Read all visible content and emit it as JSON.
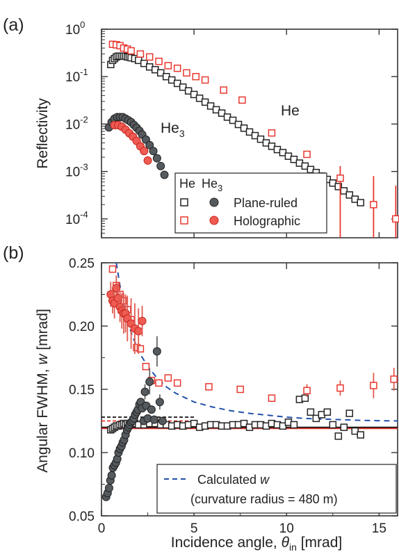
{
  "chart_data": [
    {
      "panel": "(a)",
      "type": "scatter",
      "ylabel": "Reflectivity",
      "yscale": "log",
      "ylim": [
        4e-05,
        1
      ],
      "xlim": [
        0,
        16
      ],
      "yticks": [
        {
          "v": 1,
          "m": "10",
          "e": "0"
        },
        {
          "v": 0.1,
          "m": "10",
          "e": "-1"
        },
        {
          "v": 0.01,
          "m": "10",
          "e": "-2"
        },
        {
          "v": 0.001,
          "m": "10",
          "e": "-3"
        },
        {
          "v": 0.0001,
          "m": "10",
          "e": "-4"
        }
      ],
      "annotations": [
        {
          "text": "He",
          "sub": "",
          "x": 10.5,
          "y": 0.012
        },
        {
          "text": "He",
          "sub": "3",
          "x": 5.1,
          "y": 0.0042
        }
      ],
      "legend": {
        "position": "bottom-right",
        "header_he": "He",
        "header_he3": "He",
        "header_he3_sub": "3",
        "entries": [
          "Plane-ruled",
          "Holographic"
        ]
      },
      "series": [
        {
          "name": "Plane-ruled",
          "marker": "open-square",
          "color": "#222222",
          "x": [
            0.5,
            0.6,
            0.7,
            0.8,
            0.9,
            1.0,
            1.1,
            1.2,
            1.3,
            1.4,
            1.5,
            1.6,
            1.8,
            2.0,
            2.3,
            2.6,
            2.9,
            3.2,
            3.5,
            3.8,
            4.1,
            4.4,
            4.7,
            5.0,
            5.3,
            5.6,
            5.9,
            6.2,
            6.5,
            6.8,
            7.1,
            7.4,
            7.7,
            8.0,
            8.3,
            8.6,
            8.9,
            9.2,
            9.5,
            9.8,
            10.1,
            10.4,
            10.7,
            11.0,
            11.3,
            11.6,
            11.9,
            12.2,
            12.5,
            12.8,
            13.1,
            13.4,
            13.7,
            14.0
          ],
          "y": [
            0.18,
            0.22,
            0.24,
            0.26,
            0.27,
            0.27,
            0.27,
            0.27,
            0.27,
            0.26,
            0.26,
            0.25,
            0.24,
            0.22,
            0.19,
            0.16,
            0.14,
            0.12,
            0.1,
            0.085,
            0.072,
            0.06,
            0.05,
            0.042,
            0.035,
            0.029,
            0.024,
            0.02,
            0.017,
            0.014,
            0.012,
            0.0098,
            0.0082,
            0.0068,
            0.0057,
            0.0048,
            0.004,
            0.0034,
            0.0029,
            0.0025,
            0.0021,
            0.0018,
            0.0015,
            0.0013,
            0.0011,
            0.00095,
            0.0008,
            0.00068,
            0.00057,
            0.00048,
            0.00039,
            0.00032,
            0.00026,
            0.00022
          ]
        },
        {
          "name": "Holographic",
          "marker": "open-square",
          "color": "#e8372f",
          "x": [
            0.6,
            0.8,
            1.0,
            1.2,
            1.4,
            1.6,
            2.1,
            2.6,
            3.1,
            3.6,
            4.1,
            4.6,
            5.1,
            5.6,
            6.6,
            7.6,
            9.2,
            11.1,
            12.9,
            14.7,
            15.9
          ],
          "y": [
            0.48,
            0.47,
            0.45,
            0.4,
            0.38,
            0.35,
            0.3,
            0.26,
            0.21,
            0.17,
            0.15,
            0.12,
            0.1,
            0.085,
            0.052,
            0.032,
            0.0065,
            0.0023,
            0.00072,
            0.0002,
            0.0001
          ],
          "yerr_high": [
            null,
            null,
            null,
            null,
            null,
            null,
            null,
            null,
            null,
            null,
            null,
            null,
            null,
            null,
            null,
            null,
            null,
            null,
            0.0013,
            0.0008,
            0.0005
          ],
          "yerr_low": [
            null,
            null,
            null,
            null,
            null,
            null,
            null,
            null,
            null,
            null,
            null,
            null,
            null,
            null,
            null,
            null,
            null,
            null,
            4e-05,
            4e-05,
            4e-05
          ]
        },
        {
          "name": "Plane-ruled He3",
          "marker": "filled-circle",
          "color": "#555a5e",
          "x": [
            0.4,
            0.55,
            0.7,
            0.85,
            1.0,
            1.15,
            1.3,
            1.45,
            1.6,
            1.75,
            1.9,
            2.05,
            2.2,
            2.4,
            2.6,
            2.8,
            3.0,
            3.2,
            3.4
          ],
          "y": [
            0.0085,
            0.011,
            0.013,
            0.014,
            0.014,
            0.014,
            0.013,
            0.012,
            0.011,
            0.0096,
            0.0084,
            0.0072,
            0.006,
            0.0047,
            0.0036,
            0.0027,
            0.0019,
            0.0013,
            0.00085
          ]
        },
        {
          "name": "Holographic He3",
          "marker": "filled-circle",
          "color": "#e8372f",
          "x": [
            0.7,
            0.9,
            1.1,
            1.3,
            1.5,
            1.7,
            1.9,
            2.1,
            2.3,
            2.5
          ],
          "y": [
            0.0095,
            0.0095,
            0.0088,
            0.0076,
            0.0064,
            0.0054,
            0.0044,
            0.0034,
            0.0027,
            0.0017
          ]
        }
      ]
    },
    {
      "panel": "(b)",
      "type": "scatter",
      "xlabel_main": "Incidence angle, ",
      "xlabel_sym": "θ",
      "xlabel_sub": "in",
      "xlabel_unit": " [mrad]",
      "ylabel_main": "Angular FWHM, ",
      "ylabel_sym": "w",
      "ylabel_unit": " [mrad]",
      "xlim": [
        0,
        16
      ],
      "ylim": [
        0.05,
        0.25
      ],
      "xticks": [
        0,
        5,
        10,
        15
      ],
      "yticks": [
        0.05,
        0.1,
        0.15,
        0.2,
        0.25
      ],
      "legend": {
        "position": "bottom-right",
        "line1_main": "Calculated ",
        "line1_sym": "w",
        "line2": "(curvature radius = 480 m)"
      },
      "lines": [
        {
          "name": "Calculated w",
          "style": "dashed",
          "color": "#1f4fa8",
          "x": [
            0.8,
            1.0,
            1.3,
            1.6,
            2.0,
            2.5,
            3.0,
            3.5,
            4.0,
            5.0,
            6.0,
            7.0,
            8.0,
            9.0,
            10.0,
            11.0,
            12.0,
            13.0,
            14.0,
            15.0,
            16.0
          ],
          "y": [
            0.252,
            0.232,
            0.21,
            0.195,
            0.18,
            0.168,
            0.159,
            0.152,
            0.147,
            0.14,
            0.136,
            0.133,
            0.131,
            0.1295,
            0.128,
            0.127,
            0.1265,
            0.126,
            0.1255,
            0.1252,
            0.125
          ]
        },
        {
          "name": "solid black",
          "style": "solid",
          "color": "#111111",
          "x": [
            0,
            16
          ],
          "y": [
            0.12,
            0.12
          ]
        },
        {
          "name": "solid red",
          "style": "solid",
          "color": "#e8372f",
          "x": [
            0,
            16
          ],
          "y": [
            0.119,
            0.119
          ]
        },
        {
          "name": "dashed black",
          "style": "dashed",
          "color": "#111111",
          "x": [
            0,
            5
          ],
          "y": [
            0.128,
            0.128
          ]
        },
        {
          "name": "dashed red",
          "style": "dashed",
          "color": "#e8372f",
          "x": [
            0,
            5
          ],
          "y": [
            0.125,
            0.125
          ]
        }
      ],
      "series": [
        {
          "name": "Plane-ruled",
          "marker": "open-square",
          "color": "#222222",
          "x": [
            0.5,
            0.6,
            0.7,
            0.8,
            0.9,
            1.0,
            1.1,
            1.2,
            1.3,
            1.4,
            1.5,
            1.6,
            1.8,
            2.0,
            2.3,
            2.6,
            2.9,
            3.2,
            3.5,
            3.8,
            4.1,
            4.4,
            4.7,
            5.0,
            5.3,
            5.6,
            5.9,
            6.2,
            6.5,
            6.8,
            7.1,
            7.4,
            7.7,
            8.0,
            8.3,
            8.6,
            8.9,
            9.2,
            9.5,
            9.8,
            10.1,
            10.4,
            10.7,
            11.0,
            11.3,
            11.6,
            11.9,
            12.2,
            12.5,
            12.8,
            13.1,
            13.4,
            13.7,
            14.0
          ],
          "y": [
            0.118,
            0.119,
            0.12,
            0.121,
            0.121,
            0.122,
            0.122,
            0.123,
            0.122,
            0.123,
            0.122,
            0.123,
            0.123,
            0.122,
            0.122,
            0.123,
            0.123,
            0.122,
            0.122,
            0.121,
            0.122,
            0.121,
            0.122,
            0.123,
            0.12,
            0.121,
            0.122,
            0.122,
            0.121,
            0.121,
            0.122,
            0.122,
            0.123,
            0.12,
            0.122,
            0.122,
            0.121,
            0.123,
            0.122,
            0.121,
            0.124,
            0.122,
            0.142,
            0.143,
            0.132,
            0.127,
            0.13,
            0.132,
            0.122,
            0.113,
            0.12,
            0.131,
            0.117,
            0.114
          ]
        },
        {
          "name": "Holographic",
          "marker": "open-square",
          "color": "#e8372f",
          "x": [
            0.6,
            0.8,
            1.0,
            1.2,
            1.4,
            1.6,
            1.9,
            2.1,
            2.4,
            2.7,
            3.1,
            3.6,
            4.1,
            5.8,
            7.5,
            9.2,
            11.1,
            12.9,
            14.7,
            15.8
          ],
          "y": [
            0.245,
            0.232,
            0.225,
            0.22,
            0.213,
            0.205,
            0.183,
            0.182,
            0.168,
            0.157,
            0.155,
            0.159,
            0.155,
            0.152,
            0.15,
            0.143,
            0.149,
            0.151,
            0.153,
            0.158
          ],
          "yerr": [
            0,
            0,
            0,
            0,
            0,
            0,
            0,
            0,
            0,
            0,
            0,
            0,
            0,
            0,
            0,
            0,
            0.005,
            0.006,
            0.01,
            0.009
          ]
        },
        {
          "name": "Plane-ruled He3",
          "marker": "filled-circle",
          "color": "#555a5e",
          "x": [
            0.25,
            0.33,
            0.41,
            0.48,
            0.55,
            0.62,
            0.7,
            0.78,
            0.85,
            0.92,
            1.0,
            1.08,
            1.15,
            1.22,
            1.3,
            1.38,
            1.45,
            1.52,
            1.6,
            1.68,
            1.75,
            1.82,
            1.9,
            1.97,
            2.05,
            2.12,
            2.2,
            2.28,
            2.35,
            2.42,
            2.5,
            2.6,
            2.7,
            2.85,
            3.0,
            3.15,
            3.3
          ],
          "y": [
            0.065,
            0.068,
            0.072,
            0.078,
            0.082,
            0.088,
            0.09,
            0.092,
            0.095,
            0.1,
            0.103,
            0.105,
            0.108,
            0.11,
            0.114,
            0.118,
            0.12,
            0.122,
            0.124,
            0.125,
            0.127,
            0.13,
            0.132,
            0.134,
            0.138,
            0.14,
            0.135,
            0.125,
            0.148,
            0.137,
            0.127,
            0.156,
            0.134,
            0.126,
            0.18,
            0.14,
            0.125
          ],
          "yerr": [
            0,
            0,
            0,
            0,
            0,
            0,
            0,
            0,
            0,
            0,
            0,
            0,
            0,
            0,
            0,
            0,
            0,
            0,
            0,
            0,
            0,
            0,
            0,
            0,
            0,
            0,
            0,
            0,
            0.006,
            0,
            0,
            0.01,
            0,
            0,
            0.012,
            0.006,
            0
          ]
        },
        {
          "name": "Holographic He3",
          "marker": "filled-circle",
          "color": "#e8372f",
          "x": [
            0.5,
            0.6,
            0.7,
            0.8,
            0.9,
            1.0,
            1.1,
            1.2,
            1.3,
            1.4,
            1.6,
            1.8,
            2.0,
            2.2
          ],
          "y": [
            0.225,
            0.22,
            0.218,
            0.23,
            0.222,
            0.215,
            0.212,
            0.21,
            0.21,
            0.206,
            0.202,
            0.198,
            0.196,
            0.204
          ],
          "yerr": [
            0.01,
            0.01,
            0.012,
            0.01,
            0.012,
            0.012,
            0.014,
            0.016,
            0.015,
            0.018,
            0.02,
            0.02,
            0.018,
            0.012
          ]
        }
      ]
    }
  ]
}
